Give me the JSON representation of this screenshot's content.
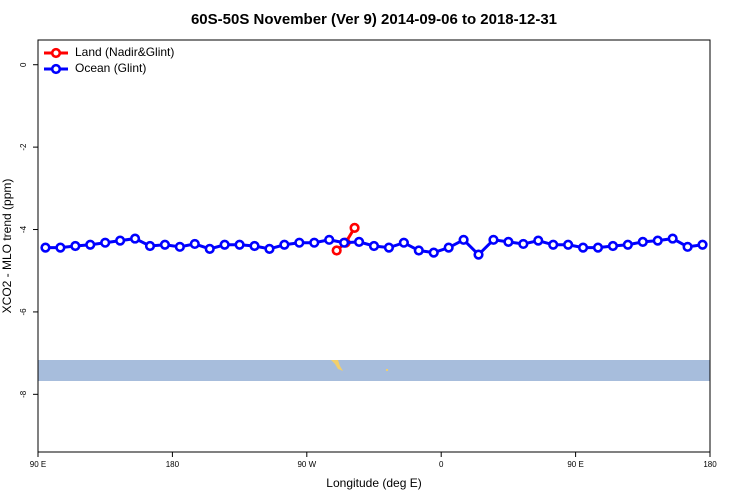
{
  "chart_data": {
    "type": "line",
    "title": "60S-50S November (Ver 9)   2014-09-06 to 2018-12-31",
    "xlabel": "Longitude (deg E)",
    "ylabel": "XCO2 - MLO trend (ppm)",
    "xlim": [
      90,
      540
    ],
    "xticks": [
      {
        "value": 90,
        "label": "90 E"
      },
      180,
      {
        "value": 270,
        "label": "90 W"
      },
      {
        "value": 360,
        "label": "0"
      },
      {
        "value": 450,
        "label": "90 E"
      },
      {
        "value": 540,
        "label": "180"
      }
    ],
    "ylim": [
      -9.4,
      0.6
    ],
    "yticks": [
      0,
      -2,
      -4,
      -6,
      -8
    ],
    "legend": "top-left",
    "series": [
      {
        "name": "Land (Nadir&Glint)",
        "color": "#ff0000",
        "x": [
          290,
          296,
          302
        ],
        "values": [
          -4.51,
          -4.32,
          -3.96
        ]
      },
      {
        "name": "Ocean (Glint)",
        "color": "#0000ff",
        "x": [
          95,
          105,
          115,
          125,
          135,
          145,
          155,
          165,
          175,
          185,
          195,
          205,
          215,
          225,
          235,
          245,
          255,
          265,
          275,
          285,
          295,
          305,
          315,
          325,
          335,
          345,
          355,
          365,
          375,
          385,
          395,
          405,
          415,
          425,
          435,
          445,
          455,
          465,
          475,
          485,
          495,
          505,
          515,
          525,
          535
        ],
        "values": [
          -4.44,
          -4.44,
          -4.4,
          -4.37,
          -4.32,
          -4.27,
          -4.22,
          -4.4,
          -4.37,
          -4.42,
          -4.35,
          -4.47,
          -4.37,
          -4.37,
          -4.4,
          -4.47,
          -4.37,
          -4.32,
          -4.32,
          -4.25,
          -4.32,
          -4.3,
          -4.4,
          -4.44,
          -4.32,
          -4.51,
          -4.56,
          -4.44,
          -4.25,
          -4.61,
          -4.25,
          -4.3,
          -4.35,
          -4.27,
          -4.37,
          -4.37,
          -4.44,
          -4.44,
          -4.4,
          -4.37,
          -4.3,
          -4.27,
          -4.22,
          -4.42,
          -4.37
        ]
      }
    ]
  }
}
